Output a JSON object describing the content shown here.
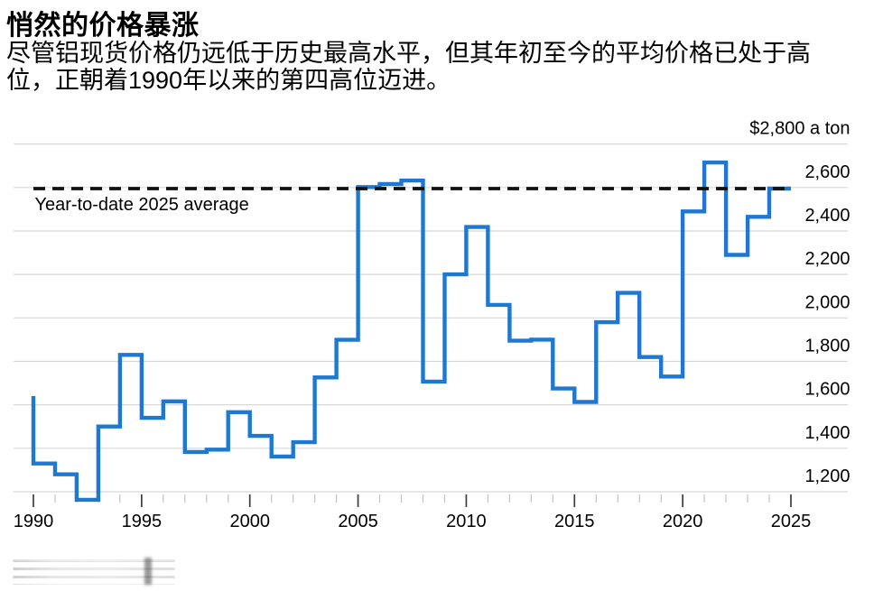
{
  "header": {
    "title": "悄然的价格暴涨",
    "subtitle": "尽管铝现货价格仍远低于历史最高水平，但其年初至今的平均价格已处于高位，正朝着1990年以来的第四高位迈进。"
  },
  "chart_data": {
    "type": "line",
    "step_mode": "vh",
    "title": "悄然的价格暴涨",
    "x": [
      1990,
      1991,
      1992,
      1993,
      1994,
      1995,
      1996,
      1997,
      1998,
      1999,
      2000,
      2001,
      2002,
      2003,
      2004,
      2005,
      2006,
      2007,
      2008,
      2009,
      2010,
      2011,
      2012,
      2013,
      2014,
      2015,
      2016,
      2017,
      2018,
      2019,
      2020,
      2021,
      2022,
      2023,
      2024,
      2025
    ],
    "values": [
      1640,
      1330,
      1280,
      1163,
      1500,
      1830,
      1540,
      1616,
      1383,
      1394,
      1566,
      1457,
      1362,
      1428,
      1726,
      1899,
      2602,
      2616,
      2632,
      1707,
      2200,
      2418,
      2060,
      1895,
      1900,
      1675,
      1613,
      1980,
      2115,
      1820,
      1730,
      2490,
      2715,
      2290,
      2465,
      2595
    ],
    "avg_line": {
      "label": "Year-to-date 2025 average",
      "value": 2595,
      "style": "dashed"
    },
    "y_axis": {
      "ticks": [
        1200,
        1400,
        1600,
        1800,
        2000,
        2200,
        2400,
        2600,
        2800
      ],
      "top_tick_label": "$2,800 a ton",
      "range": [
        1150,
        2800
      ],
      "gridlines": true
    },
    "x_axis": {
      "range": [
        1990,
        2025
      ],
      "major_ticks": [
        1990,
        1995,
        2000,
        2005,
        2010,
        2015,
        2020,
        2025
      ],
      "minor_tick_every": 1
    },
    "legend": "none",
    "colors": {
      "line": "#1e78d2",
      "avg_line": "#111111",
      "grid": "#d8d8d8",
      "text": "#000000",
      "tick_major": "#3d3d3d",
      "tick_minor": "#c3c3c3"
    }
  }
}
